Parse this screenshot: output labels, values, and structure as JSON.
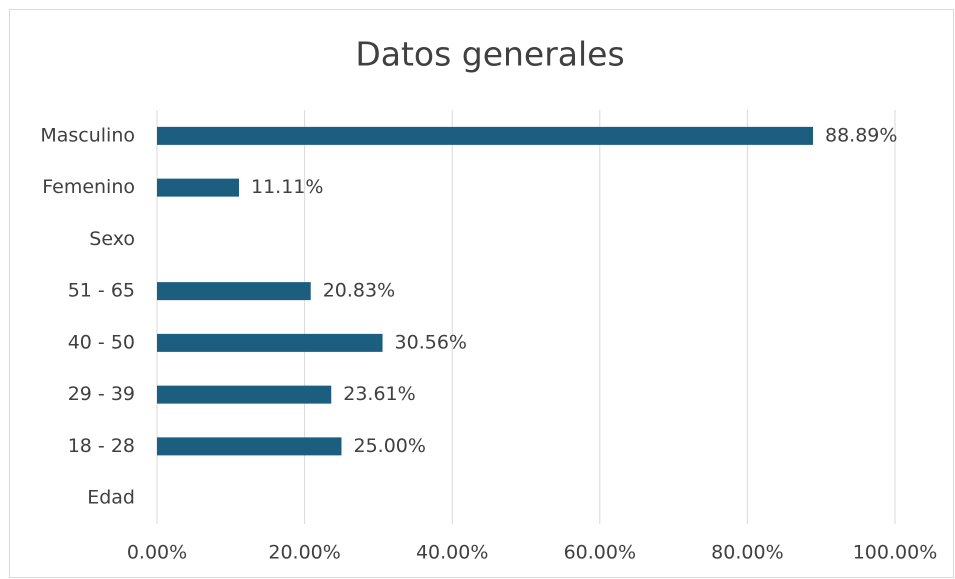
{
  "chart_data": {
    "type": "bar",
    "orientation": "horizontal",
    "title": "Datos generales",
    "categories": [
      "Masculino",
      "Femenino",
      "Sexo",
      "51 - 65",
      "40 - 50",
      "29 - 39",
      "18 - 28",
      "Edad"
    ],
    "values": [
      88.89,
      11.11,
      null,
      20.83,
      30.56,
      23.61,
      25.0,
      null
    ],
    "value_labels": [
      "88.89%",
      "11.11%",
      null,
      "20.83%",
      "30.56%",
      "23.61%",
      "25.00%",
      null
    ],
    "color": "#1b5e80",
    "xlim": [
      0,
      100
    ],
    "xticks": [
      {
        "value": 0,
        "label": "0.00%"
      },
      {
        "value": 20,
        "label": "20.00%"
      },
      {
        "value": 40,
        "label": "40.00%"
      },
      {
        "value": 60,
        "label": "60.00%"
      },
      {
        "value": 80,
        "label": "80.00%"
      },
      {
        "value": 100,
        "label": "100.00%"
      }
    ],
    "grid": true
  }
}
